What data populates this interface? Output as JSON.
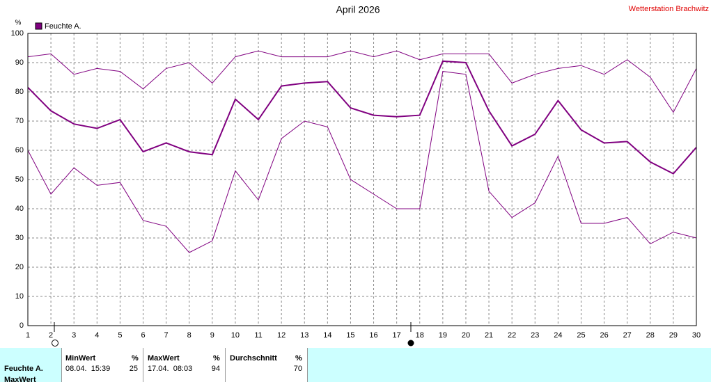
{
  "chart_data": {
    "type": "line",
    "title": "April 2026",
    "station": "Wetterstation Brachwitz",
    "y_unit": "%",
    "x": [
      1,
      2,
      3,
      4,
      5,
      6,
      7,
      8,
      9,
      10,
      11,
      12,
      13,
      14,
      15,
      16,
      17,
      18,
      19,
      20,
      21,
      22,
      23,
      24,
      25,
      26,
      27,
      28,
      29,
      30
    ],
    "xlim": [
      1,
      30
    ],
    "xticks": [
      1,
      2,
      3,
      4,
      5,
      6,
      7,
      8,
      9,
      10,
      11,
      12,
      13,
      14,
      15,
      16,
      17,
      18,
      19,
      20,
      21,
      22,
      23,
      24,
      25,
      26,
      27,
      28,
      29,
      30
    ],
    "ylim": [
      0,
      100
    ],
    "yticks": [
      0,
      10,
      20,
      30,
      40,
      50,
      60,
      70,
      80,
      90,
      100
    ],
    "grid": true,
    "series": [
      {
        "name": "Feuchte A.",
        "color": "#800080",
        "width": 2,
        "values": [
          81.5,
          73.5,
          69,
          67.5,
          70.5,
          59.5,
          62.5,
          59.5,
          58.5,
          77.5,
          70.5,
          82,
          83,
          83.5,
          74.5,
          72,
          71.5,
          72,
          90.5,
          90,
          73.5,
          61.5,
          65.5,
          77,
          67,
          62.5,
          63,
          56,
          52,
          61
        ]
      },
      {
        "color": "#800080",
        "width": 1,
        "values": [
          92,
          93,
          86,
          88,
          87,
          81,
          88,
          90,
          83,
          92,
          94,
          92,
          92,
          92,
          94,
          92,
          94,
          91,
          93,
          93,
          93,
          83,
          86,
          88,
          89,
          86,
          91,
          85,
          73,
          88
        ]
      },
      {
        "color": "#800080",
        "width": 1,
        "values": [
          60,
          45,
          54,
          48,
          49,
          36,
          34,
          25,
          29,
          53,
          43,
          64,
          70,
          68,
          50,
          45,
          40,
          40,
          87,
          86,
          46,
          37,
          42,
          58,
          35,
          35,
          37,
          28,
          32,
          30
        ]
      }
    ]
  },
  "table": {
    "headers": [
      [
        "MinWert",
        "%"
      ],
      [
        "MaxWert",
        "%"
      ],
      [
        "Durchschnitt",
        "%"
      ]
    ],
    "rows": [
      [
        "Feuchte A.",
        "08.04.  15:39",
        25,
        "17.04.  08:03",
        94,
        70
      ],
      [
        "MaxWert"
      ]
    ]
  }
}
